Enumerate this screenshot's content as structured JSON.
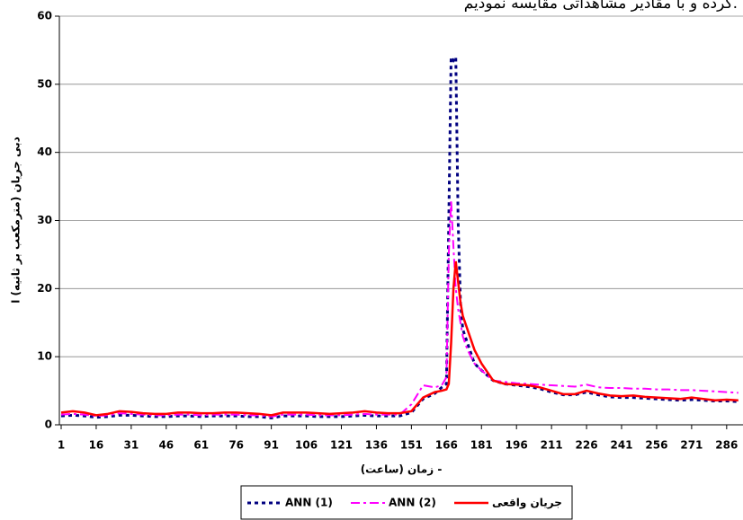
{
  "chart_data": {
    "type": "line",
    "annotation": "کرده و با مقادیر مشاهداتی مقایسه نمودیم.",
    "x_label": "زمان (ساعت) -",
    "y_label": "دبی جریان (مترمکعب بر ثانیه) ا",
    "x": [
      1,
      6,
      11,
      16,
      21,
      26,
      31,
      36,
      41,
      46,
      51,
      56,
      61,
      66,
      71,
      76,
      81,
      86,
      91,
      96,
      101,
      106,
      111,
      116,
      121,
      126,
      131,
      136,
      141,
      146,
      151,
      156,
      161,
      164,
      166,
      167,
      168,
      169,
      170,
      171,
      172,
      173,
      175,
      178,
      181,
      186,
      191,
      196,
      201,
      206,
      211,
      216,
      221,
      226,
      231,
      236,
      241,
      246,
      251,
      256,
      261,
      266,
      271,
      276,
      281,
      286,
      291
    ],
    "series": [
      {
        "name": "ANN (1)",
        "color": "#000080",
        "style": "dotted",
        "values": [
          1.3,
          1.4,
          1.3,
          1.1,
          1.2,
          1.4,
          1.4,
          1.3,
          1.2,
          1.2,
          1.3,
          1.3,
          1.2,
          1.3,
          1.3,
          1.3,
          1.2,
          1.2,
          1.0,
          1.3,
          1.3,
          1.3,
          1.2,
          1.2,
          1.2,
          1.3,
          1.4,
          1.3,
          1.3,
          1.3,
          1.8,
          3.8,
          4.6,
          5.5,
          6,
          30,
          54,
          53.5,
          54,
          30,
          18,
          14,
          12,
          9,
          8,
          6.5,
          6,
          5.8,
          5.6,
          5.3,
          4.8,
          4.4,
          4.4,
          4.8,
          4.4,
          4.1,
          4.0,
          4.0,
          3.9,
          3.8,
          3.7,
          3.6,
          3.7,
          3.6,
          3.5,
          3.5,
          3.4
        ]
      },
      {
        "name": "ANN (2)",
        "color": "#ff00ff",
        "style": "dashdot",
        "values": [
          1.5,
          1.6,
          1.5,
          1.3,
          1.4,
          1.7,
          1.6,
          1.5,
          1.4,
          1.4,
          1.5,
          1.5,
          1.4,
          1.5,
          1.5,
          1.5,
          1.4,
          1.4,
          1.2,
          1.5,
          1.5,
          1.5,
          1.4,
          1.4,
          1.4,
          1.5,
          1.6,
          1.5,
          1.5,
          1.5,
          3.0,
          5.8,
          5.5,
          5.8,
          7,
          25,
          33,
          26,
          20,
          17,
          15,
          13,
          11,
          9,
          8,
          6.5,
          6.3,
          6.1,
          6.0,
          5.9,
          5.8,
          5.7,
          5.6,
          5.9,
          5.5,
          5.4,
          5.4,
          5.3,
          5.3,
          5.2,
          5.2,
          5.1,
          5.1,
          5.0,
          4.9,
          4.8,
          4.7
        ]
      },
      {
        "name": "جریان واقعی",
        "color": "#ff0000",
        "style": "solid",
        "values": [
          1.8,
          2.0,
          1.8,
          1.4,
          1.6,
          2.0,
          1.9,
          1.7,
          1.6,
          1.6,
          1.8,
          1.8,
          1.7,
          1.7,
          1.8,
          1.8,
          1.7,
          1.6,
          1.4,
          1.8,
          1.8,
          1.8,
          1.7,
          1.6,
          1.7,
          1.8,
          2.0,
          1.8,
          1.7,
          1.7,
          2.0,
          4.0,
          4.8,
          5.0,
          5.2,
          6,
          12,
          20,
          24,
          21,
          18,
          16,
          14,
          11,
          9,
          6.5,
          6,
          5.9,
          5.8,
          5.5,
          5,
          4.5,
          4.5,
          5,
          4.6,
          4.3,
          4.2,
          4.3,
          4.1,
          4.0,
          3.9,
          3.8,
          4.0,
          3.8,
          3.6,
          3.7,
          3.6
        ]
      }
    ],
    "xlim": [
      1,
      293
    ],
    "xticks": [
      1,
      16,
      31,
      46,
      61,
      76,
      91,
      106,
      121,
      136,
      151,
      166,
      181,
      196,
      211,
      226,
      241,
      256,
      271,
      286
    ],
    "ylim": [
      0,
      60
    ],
    "yticks": [
      0,
      10,
      20,
      30,
      40,
      50,
      60
    ],
    "grid": true
  }
}
